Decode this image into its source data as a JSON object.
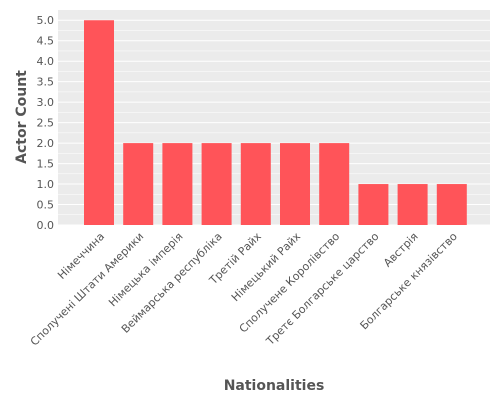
{
  "chart_data": {
    "type": "bar",
    "title": "",
    "xlabel": "Nationalities",
    "ylabel": "Actor Count",
    "categories": [
      "Німеччина",
      "Сполучені Штати Америки",
      "Німецька імперія",
      "Веймарська республіка",
      "Третій Райх",
      "Німецький Райх",
      "Сполучене Королівство",
      "Третє Болгарське царство",
      "Австрія",
      "Болгарське князівство"
    ],
    "values": [
      5,
      2,
      2,
      2,
      2,
      2,
      2,
      1,
      1,
      1
    ],
    "ylim": [
      0,
      5.25
    ],
    "yticks": [
      "0.0",
      "0.5",
      "1.0",
      "1.5",
      "2.0",
      "2.5",
      "3.0",
      "3.5",
      "4.0",
      "4.5",
      "5.0"
    ],
    "grid": true,
    "colors": {
      "bar": "#ff5459",
      "background": "#ebebeb",
      "grid": "#ffffff",
      "text": "#555555"
    }
  }
}
